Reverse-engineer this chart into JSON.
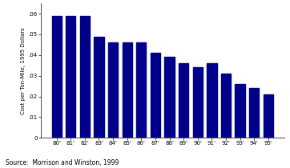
{
  "categories": [
    "80'",
    "81'",
    "82'",
    "83'",
    "84'",
    "85'",
    "86'",
    "87'",
    "88'",
    "89'",
    "90'",
    "91'",
    "92'",
    "93'",
    "94'",
    "95'"
  ],
  "values": [
    0.059,
    0.059,
    0.059,
    0.049,
    0.046,
    0.046,
    0.046,
    0.041,
    0.039,
    0.036,
    0.034,
    0.036,
    0.031,
    0.026,
    0.024,
    0.021
  ],
  "bar_color": "#00008B",
  "ylabel": "Cost per Ton-Mile, 1995 Dollars",
  "ylim": [
    0,
    0.065
  ],
  "yticks": [
    0,
    0.01,
    0.02,
    0.03,
    0.04,
    0.05,
    0.06
  ],
  "ytick_labels": [
    "0",
    ".01",
    ".02",
    ".03",
    ".04",
    ".05",
    ".06"
  ],
  "source_text": "Source:  Morrison and Winston, 1999",
  "background_color": "#ffffff",
  "bar_width": 0.7
}
